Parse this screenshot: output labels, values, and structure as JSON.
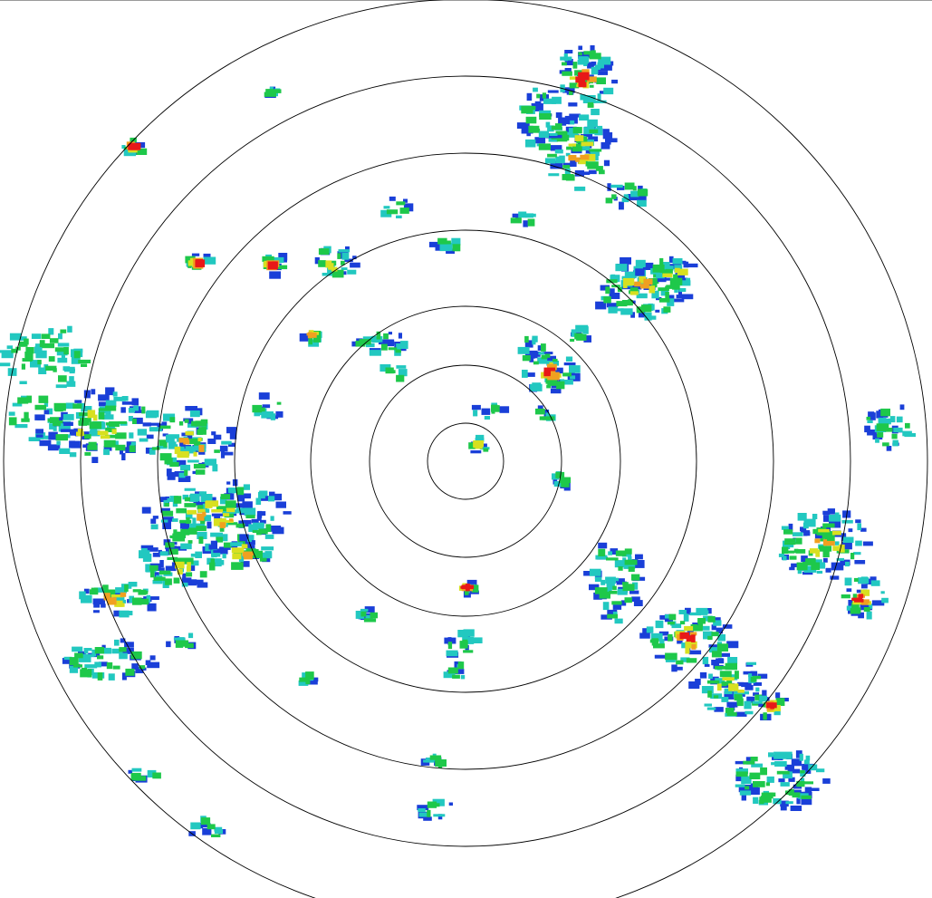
{
  "radar": {
    "range_rings": 7,
    "palette": {
      "weak": "#1a3fd8",
      "light": "#22c8c0",
      "moderate": "#1ec84a",
      "strong": "#d8e020",
      "heavy": "#f0a020",
      "intense": "#e81818"
    },
    "ring_color": "#000000",
    "background": "#ffffff"
  }
}
